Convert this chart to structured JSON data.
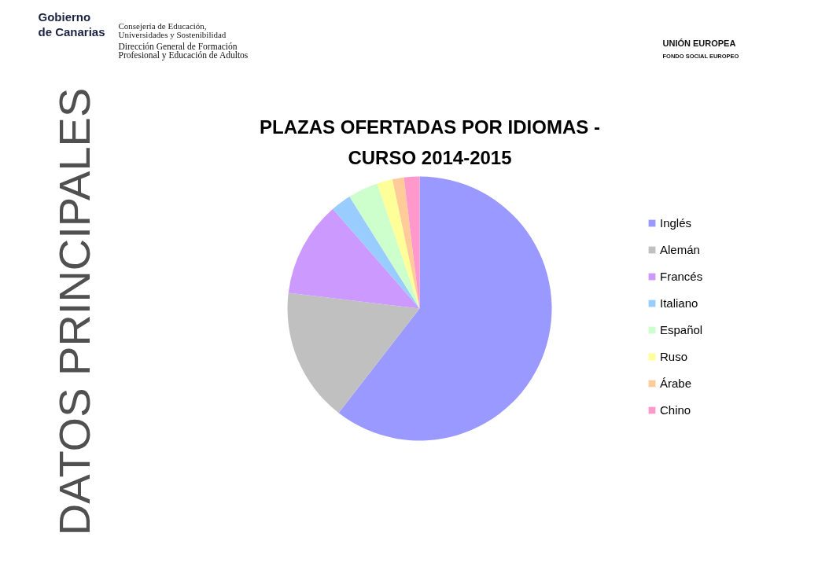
{
  "chart_data": {
    "type": "pie",
    "title": "PLAZAS OFERTADAS POR IDIOMAS - CURSO 2014-2015",
    "categories": [
      "Inglés",
      "Alemán",
      "Francés",
      "Italiano",
      "Español",
      "Ruso",
      "Árabe",
      "Chino"
    ],
    "values": [
      60.5,
      16.4,
      11.7,
      2.5,
      3.7,
      1.9,
      1.4,
      1.9
    ],
    "colors": [
      "#9999ff",
      "#c0c0c0",
      "#cc99ff",
      "#99ccff",
      "#ccffcc",
      "#ffff99",
      "#ffcc99",
      "#ff99cc"
    ],
    "legend": "right",
    "annotations": [
      "Gobierno",
      "de Canarias",
      "Consejería de Educación,",
      "Universidades y Sostenibilidad",
      "Dirección General de Formación",
      "Profesional y Educación de Adultos",
      "UNIÓN EUROPEA",
      "FONDO SOCIAL EUROPEO",
      "DATOS PRINCIPALES"
    ]
  }
}
